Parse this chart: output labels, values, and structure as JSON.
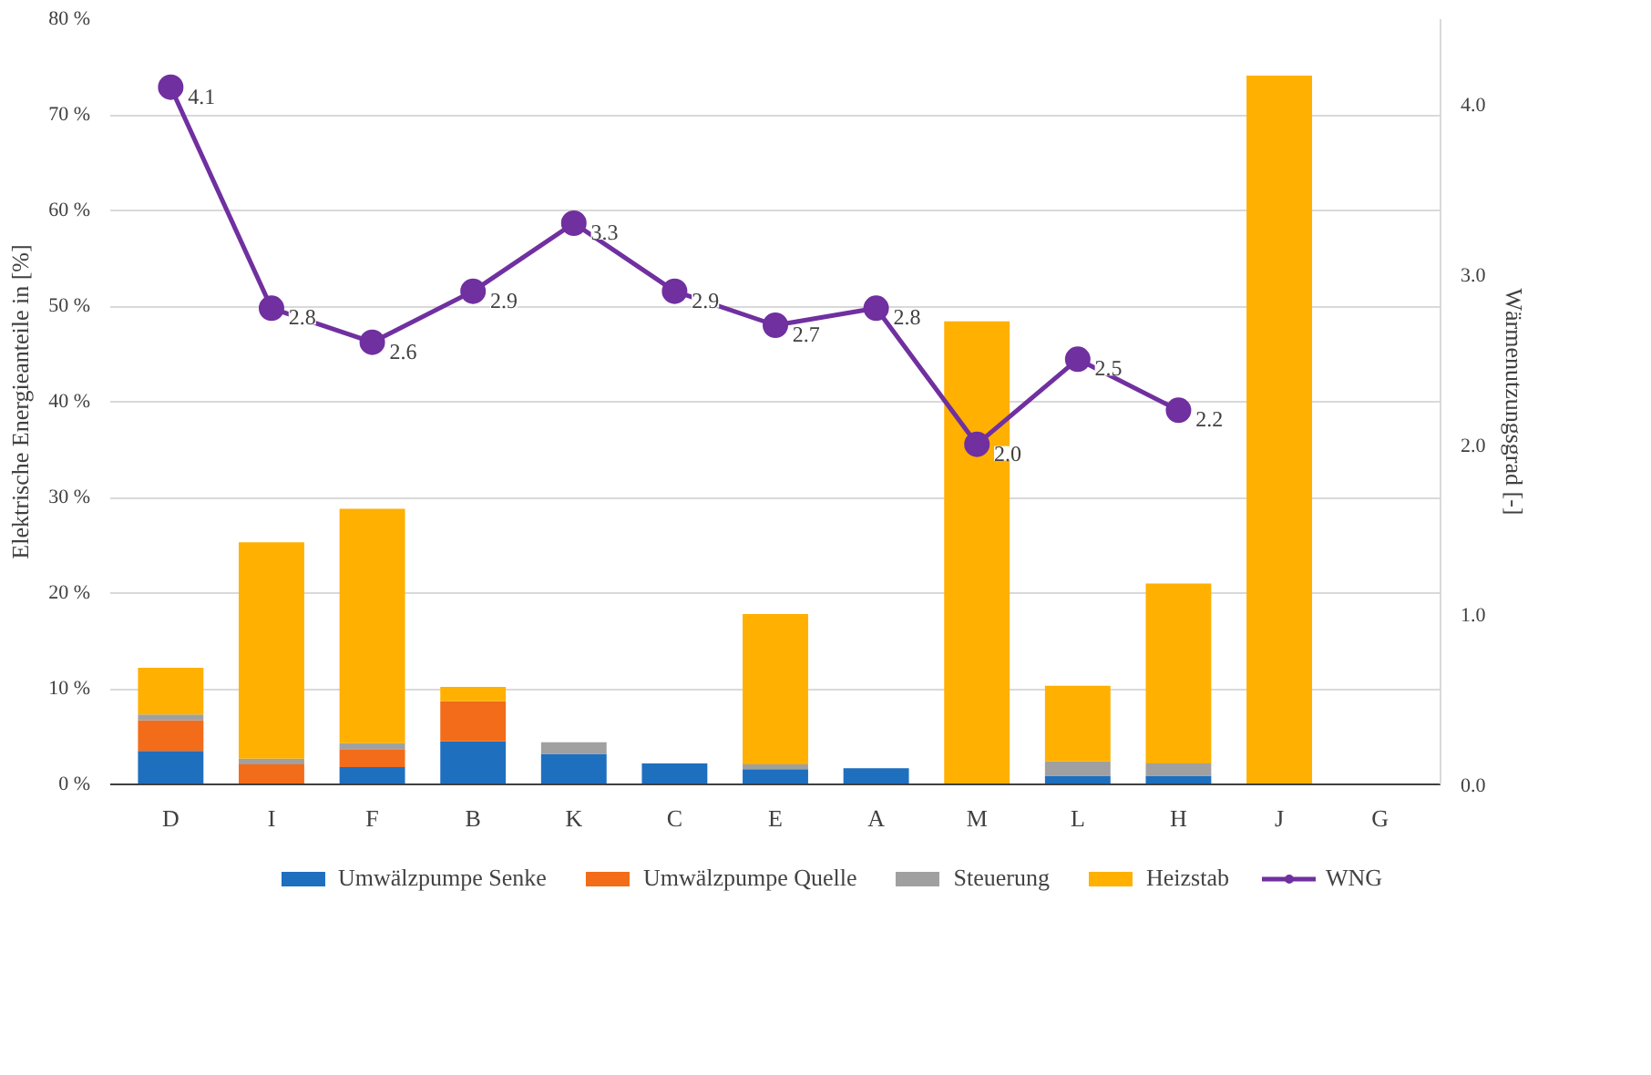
{
  "chart_data": {
    "type": "bar",
    "stacked": true,
    "ylabel": "Elektrische Energieanteile in [%]",
    "y2label": "Wärmenutzungsgrad [-]",
    "categories": [
      "D",
      "I",
      "F",
      "B",
      "K",
      "C",
      "E",
      "A",
      "M",
      "L",
      "H",
      "J",
      "G"
    ],
    "series": [
      {
        "name": "Umwälzpumpe Senke",
        "color": "#1f6fbf",
        "values": [
          3.5,
          0,
          1.8,
          4.5,
          3.2,
          2.2,
          1.6,
          1.7,
          0,
          0.9,
          0.9,
          0,
          null
        ]
      },
      {
        "name": "Umwälzpumpe Quelle",
        "color": "#f26c1a",
        "values": [
          3.2,
          2.1,
          1.9,
          4.2,
          0,
          0,
          0,
          0,
          0,
          0,
          0,
          0,
          null
        ]
      },
      {
        "name": "Steuerung",
        "color": "#a0a0a0",
        "values": [
          0.6,
          0.6,
          0.6,
          0,
          1.2,
          0,
          0.5,
          0,
          0,
          1.5,
          1.3,
          0,
          null
        ]
      },
      {
        "name": "Heizstab",
        "color": "#ffb000",
        "values": [
          4.9,
          22.6,
          24.5,
          1.5,
          0,
          0,
          15.7,
          0,
          48.4,
          7.9,
          18.8,
          74.1,
          null
        ]
      },
      {
        "name": "WNG",
        "type": "line",
        "axis": "y2",
        "marker": "circle",
        "color": "#7030a0",
        "values": [
          4.1,
          2.8,
          2.6,
          2.9,
          3.3,
          2.9,
          2.7,
          2.8,
          2.0,
          2.5,
          2.2,
          null,
          null
        ],
        "value_labels": [
          "4.1",
          "2.8",
          "2.6",
          "2.9",
          "3.3",
          "2.9",
          "2.7",
          "2.8",
          "2.0",
          "2.5",
          "2.2",
          null,
          null
        ]
      }
    ],
    "ylim": [
      0,
      80
    ],
    "yticks": [
      {
        "value": 0,
        "label": "0 %"
      },
      {
        "value": 10,
        "label": "10 %"
      },
      {
        "value": 20,
        "label": "20 %"
      },
      {
        "value": 30,
        "label": "30 %"
      },
      {
        "value": 40,
        "label": "40 %"
      },
      {
        "value": 50,
        "label": "50 %"
      },
      {
        "value": 60,
        "label": "60 %"
      },
      {
        "value": 70,
        "label": "70 %"
      },
      {
        "value": 80,
        "label": "80 %"
      }
    ],
    "y2lim": [
      0,
      4.5
    ],
    "y2ticks": [
      {
        "value": 0,
        "label": "0.0"
      },
      {
        "value": 1,
        "label": "1.0"
      },
      {
        "value": 2,
        "label": "2.0"
      },
      {
        "value": 3,
        "label": "3.0"
      },
      {
        "value": 4,
        "label": "4.0"
      }
    ],
    "grid": "y",
    "legend": "bottom"
  }
}
